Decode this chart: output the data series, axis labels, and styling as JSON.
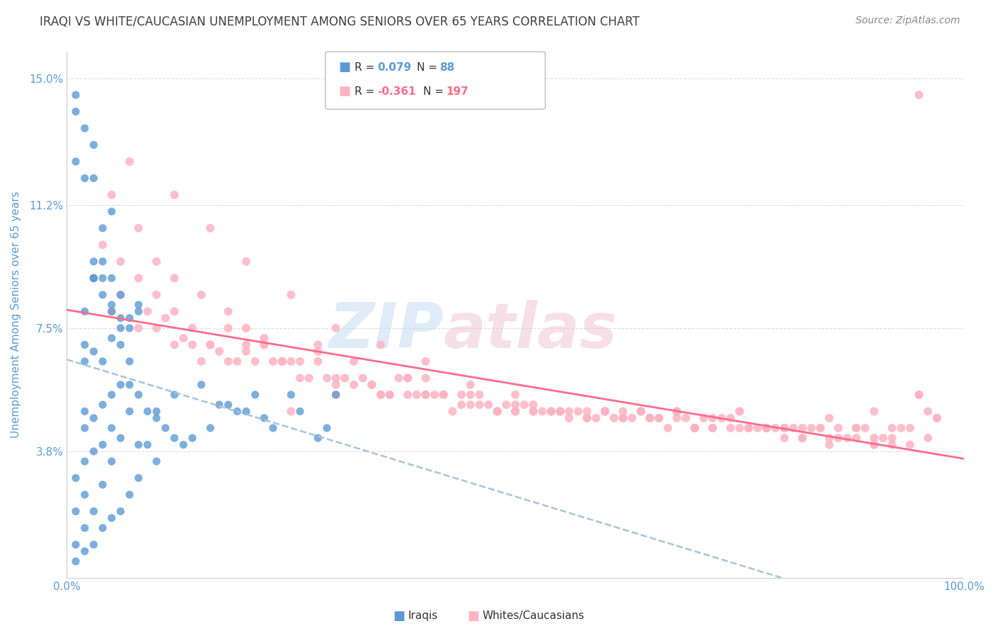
{
  "title": "IRAQI VS WHITE/CAUCASIAN UNEMPLOYMENT AMONG SENIORS OVER 65 YEARS CORRELATION CHART",
  "source": "Source: ZipAtlas.com",
  "ylabel": "Unemployment Among Seniors over 65 years",
  "xlim": [
    0,
    100
  ],
  "ylim": [
    0,
    15.8
  ],
  "yticks": [
    0,
    3.8,
    7.5,
    11.2,
    15.0
  ],
  "ytick_labels": [
    "",
    "3.8%",
    "7.5%",
    "11.2%",
    "15.0%"
  ],
  "xtick_labels": [
    "0.0%",
    "100.0%"
  ],
  "iraqi_color": "#5B9BD5",
  "white_color": "#FFB3C1",
  "iraqi_line_color": "#A8C4DC",
  "white_line_color": "#FF6B8A",
  "bg_color": "#FFFFFF",
  "grid_color": "#DDDDDD",
  "title_color": "#404040",
  "axis_label_color": "#5B9BD5",
  "tick_color": "#5B9BD5",
  "iraqis_x": [
    1,
    1,
    1,
    1,
    1,
    2,
    2,
    2,
    2,
    2,
    2,
    2,
    2,
    2,
    3,
    3,
    3,
    3,
    3,
    3,
    3,
    3,
    4,
    4,
    4,
    4,
    4,
    4,
    4,
    5,
    5,
    5,
    5,
    5,
    5,
    5,
    6,
    6,
    6,
    6,
    6,
    7,
    7,
    7,
    7,
    8,
    8,
    8,
    8,
    9,
    9,
    10,
    10,
    10,
    11,
    12,
    12,
    13,
    14,
    15,
    16,
    17,
    18,
    19,
    20,
    21,
    22,
    23,
    25,
    26,
    28,
    29,
    30,
    1,
    1,
    2,
    2,
    3,
    3,
    4,
    4,
    5,
    5,
    6,
    6,
    7,
    7,
    8
  ],
  "iraqis_y": [
    0.5,
    1.0,
    2.0,
    3.0,
    14.5,
    0.8,
    1.5,
    2.5,
    3.5,
    4.5,
    5.0,
    6.5,
    7.0,
    8.0,
    1.0,
    2.0,
    3.8,
    4.8,
    6.8,
    9.0,
    12.0,
    13.0,
    1.5,
    2.8,
    4.0,
    5.2,
    6.5,
    8.5,
    10.5,
    1.8,
    3.5,
    4.5,
    5.5,
    7.2,
    9.0,
    11.0,
    2.0,
    4.2,
    5.8,
    7.0,
    8.5,
    2.5,
    5.0,
    5.8,
    6.5,
    3.0,
    4.0,
    5.5,
    8.0,
    4.0,
    5.0,
    3.5,
    4.8,
    5.0,
    4.5,
    4.2,
    5.5,
    4.0,
    4.2,
    5.8,
    4.5,
    5.2,
    5.2,
    5.0,
    5.0,
    5.5,
    4.8,
    4.5,
    5.5,
    5.0,
    4.2,
    4.5,
    5.5,
    12.5,
    14.0,
    12.0,
    13.5,
    9.5,
    9.0,
    9.5,
    9.0,
    8.0,
    8.2,
    7.5,
    7.8,
    7.5,
    7.8,
    8.2
  ],
  "whites_x": [
    3,
    5,
    6,
    8,
    9,
    10,
    11,
    12,
    13,
    14,
    15,
    16,
    17,
    18,
    19,
    20,
    21,
    22,
    23,
    24,
    25,
    26,
    27,
    28,
    29,
    30,
    31,
    32,
    33,
    34,
    35,
    36,
    37,
    38,
    39,
    40,
    41,
    42,
    43,
    44,
    45,
    46,
    47,
    48,
    49,
    50,
    51,
    52,
    53,
    54,
    55,
    56,
    57,
    58,
    59,
    60,
    61,
    62,
    63,
    64,
    65,
    66,
    67,
    68,
    69,
    70,
    71,
    72,
    73,
    74,
    75,
    76,
    77,
    78,
    79,
    80,
    81,
    82,
    83,
    84,
    85,
    86,
    87,
    88,
    89,
    90,
    91,
    92,
    93,
    94,
    95,
    96,
    97,
    4,
    6,
    8,
    10,
    12,
    14,
    16,
    18,
    20,
    22,
    24,
    26,
    28,
    30,
    32,
    34,
    36,
    38,
    40,
    42,
    44,
    46,
    48,
    50,
    52,
    54,
    56,
    58,
    60,
    62,
    64,
    66,
    68,
    70,
    72,
    74,
    76,
    78,
    80,
    82,
    84,
    86,
    88,
    90,
    92,
    94,
    96,
    5,
    8,
    10,
    12,
    15,
    18,
    20,
    22,
    25,
    28,
    30,
    35,
    38,
    40,
    42,
    45,
    48,
    50,
    52,
    55,
    58,
    60,
    62,
    65,
    68,
    70,
    72,
    75,
    78,
    80,
    82,
    85,
    88,
    90,
    92,
    95,
    97,
    7,
    12,
    16,
    20,
    25,
    30,
    35,
    40,
    45,
    50,
    55,
    60,
    65,
    70,
    75,
    80,
    85,
    90,
    95
  ],
  "whites_y": [
    9.0,
    8.0,
    8.5,
    7.5,
    8.0,
    7.5,
    7.8,
    7.0,
    7.2,
    7.0,
    6.5,
    7.0,
    6.8,
    6.5,
    6.5,
    6.8,
    6.5,
    7.2,
    6.5,
    6.5,
    5.0,
    6.0,
    6.0,
    6.5,
    6.0,
    5.5,
    6.0,
    5.8,
    6.0,
    5.8,
    5.5,
    5.5,
    6.0,
    5.5,
    5.5,
    6.0,
    5.5,
    5.5,
    5.0,
    5.5,
    5.5,
    5.2,
    5.2,
    5.0,
    5.2,
    5.0,
    5.2,
    5.0,
    5.0,
    5.0,
    5.0,
    4.8,
    5.0,
    5.0,
    4.8,
    5.0,
    4.8,
    5.0,
    4.8,
    5.0,
    4.8,
    4.8,
    4.5,
    5.0,
    4.8,
    4.5,
    4.8,
    4.5,
    4.8,
    4.5,
    5.0,
    4.5,
    4.5,
    4.5,
    4.5,
    4.5,
    4.5,
    4.2,
    4.5,
    4.5,
    4.8,
    4.5,
    4.2,
    4.2,
    4.5,
    4.0,
    4.2,
    4.5,
    4.5,
    4.0,
    5.5,
    5.0,
    4.8,
    10.0,
    9.5,
    9.0,
    8.5,
    8.0,
    7.5,
    7.0,
    7.5,
    7.0,
    7.0,
    6.5,
    6.5,
    6.8,
    6.0,
    6.5,
    5.8,
    5.5,
    6.0,
    5.5,
    5.5,
    5.2,
    5.5,
    5.0,
    5.0,
    5.2,
    5.0,
    5.0,
    4.8,
    5.0,
    4.8,
    5.0,
    4.8,
    4.8,
    4.5,
    4.8,
    4.8,
    4.5,
    4.5,
    4.5,
    4.5,
    4.5,
    4.2,
    4.5,
    4.2,
    4.0,
    4.5,
    4.2,
    11.5,
    10.5,
    9.5,
    9.0,
    8.5,
    8.0,
    7.5,
    7.0,
    6.5,
    7.0,
    5.8,
    5.5,
    6.0,
    5.5,
    5.5,
    5.2,
    5.0,
    5.2,
    5.0,
    5.0,
    4.8,
    5.0,
    4.8,
    4.8,
    5.0,
    4.5,
    4.5,
    5.0,
    4.5,
    4.5,
    4.2,
    4.2,
    4.5,
    4.0,
    4.2,
    5.5,
    4.8,
    12.5,
    11.5,
    10.5,
    9.5,
    8.5,
    7.5,
    7.0,
    6.5,
    5.8,
    5.5,
    5.0,
    5.0,
    4.8,
    4.5,
    4.5,
    4.2,
    4.0,
    5.0,
    14.5
  ]
}
